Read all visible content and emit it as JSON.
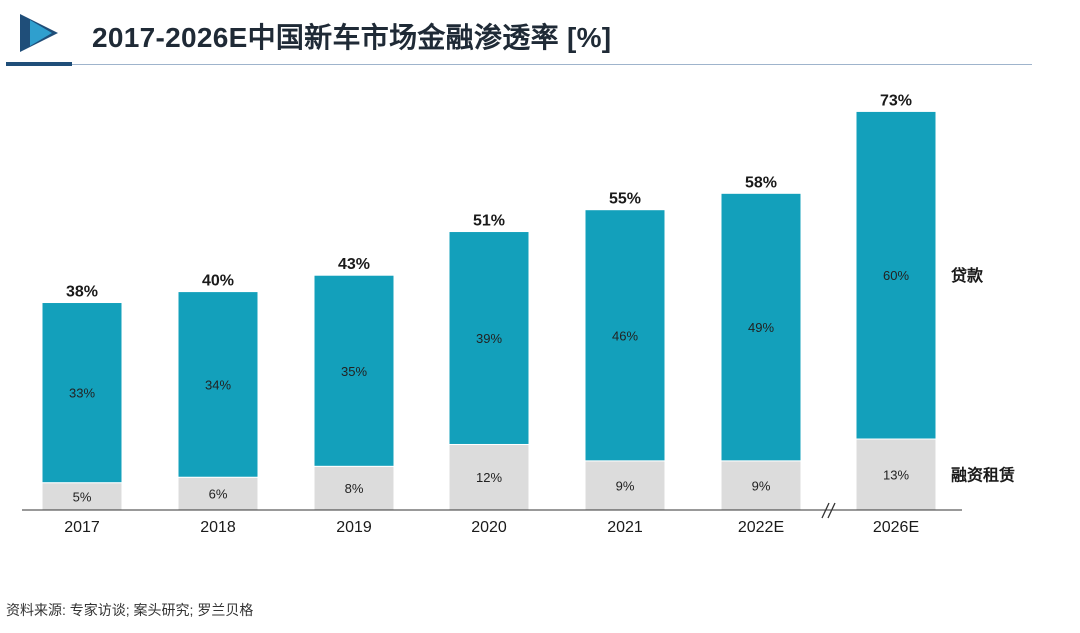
{
  "header": {
    "title": "2017-2026E中国新车市场金融渗透率 [%]"
  },
  "footer": {
    "source": "资料来源: 专家访谈; 案头研究; 罗兰贝格"
  },
  "colors": {
    "loan": "#13a0bb",
    "leasing": "#dcdcdc",
    "logo_dark": "#1f4e79",
    "logo_light": "#2f9fce"
  },
  "icons": {
    "logo": "play-triangle-icon",
    "axis_break": "double-slash-break-icon"
  },
  "chart_data": {
    "type": "bar",
    "stacked": true,
    "categories": [
      "2017",
      "2018",
      "2019",
      "2020",
      "2021",
      "2022E",
      "2026E"
    ],
    "series": [
      {
        "name": "融资租赁",
        "values": [
          5,
          6,
          8,
          12,
          9,
          9,
          13
        ],
        "labels": [
          "5%",
          "6%",
          "8%",
          "12%",
          "9%",
          "9%",
          "13%"
        ]
      },
      {
        "name": "贷款",
        "values": [
          33,
          34,
          35,
          39,
          46,
          49,
          60
        ],
        "labels": [
          "33%",
          "34%",
          "35%",
          "39%",
          "46%",
          "49%",
          "60%"
        ]
      }
    ],
    "totals": [
      38,
      40,
      43,
      51,
      55,
      58,
      73
    ],
    "total_labels": [
      "38%",
      "40%",
      "43%",
      "51%",
      "55%",
      "58%",
      "73%"
    ],
    "axis_break_between": [
      "2022E",
      "2026E"
    ],
    "legend_position": "right",
    "ylim": [
      0,
      73
    ],
    "grid": false
  }
}
